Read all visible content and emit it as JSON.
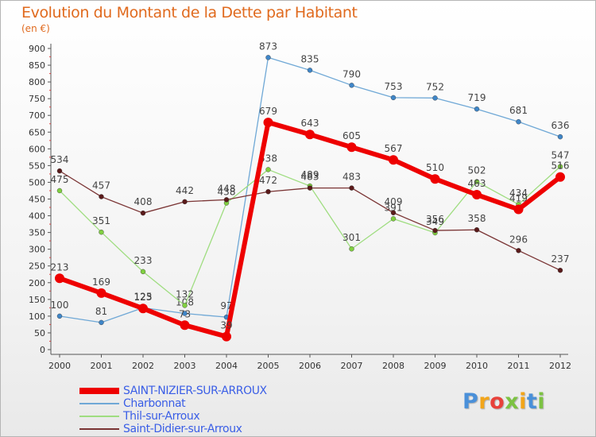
{
  "header": {
    "title": "Evolution du Montant de la Dette par Habitant",
    "unit": "(en €)"
  },
  "logo": {
    "letters": [
      "P",
      "r",
      "o",
      "x",
      "i",
      "t",
      "i"
    ],
    "colors": [
      "#4a90d9",
      "#f2a51a",
      "#e8413a",
      "#7cc242",
      "#f2a51a",
      "#4a90d9",
      "#7cc242"
    ]
  },
  "chart_data": {
    "type": "line",
    "title": "Evolution du Montant de la Dette par Habitant",
    "ylabel": "(en €)",
    "xlabel": "",
    "x": [
      "2000",
      "2001",
      "2002",
      "2003",
      "2004",
      "2005",
      "2006",
      "2007",
      "2008",
      "2009",
      "2010",
      "2011",
      "2012"
    ],
    "ylim": [
      0,
      900
    ],
    "yticks": [
      0,
      50,
      100,
      150,
      200,
      250,
      300,
      350,
      400,
      450,
      500,
      550,
      600,
      650,
      700,
      750,
      800,
      850,
      900
    ],
    "grid": false,
    "legend": "bottom-left",
    "series": [
      {
        "name": "Charbonnat",
        "color": "#6fa8d6",
        "marker": "#3f86c8",
        "width": 1.3,
        "values": [
          100,
          81,
          125,
          108,
          97,
          873,
          835,
          790,
          753,
          752,
          719,
          681,
          636
        ]
      },
      {
        "name": "Thil-sur-Arroux",
        "color": "#9fdd80",
        "marker": "#80d040",
        "width": 1.3,
        "values": [
          475,
          351,
          233,
          132,
          438,
          538,
          489,
          301,
          391,
          349,
          502,
          434,
          547
        ]
      },
      {
        "name": "Saint-Didier-sur-Arroux",
        "color": "#7a3434",
        "marker": "#5a1a1a",
        "width": 1.3,
        "values": [
          534,
          457,
          408,
          442,
          448,
          472,
          483,
          483,
          409,
          356,
          358,
          296,
          237
        ]
      },
      {
        "name": "SAINT-NIZIER-SUR-ARROUX",
        "color": "#ee0000",
        "marker": "#ee0000",
        "width": 6,
        "values": [
          213,
          169,
          123,
          73,
          39,
          679,
          643,
          605,
          567,
          510,
          463,
          419,
          516
        ]
      }
    ]
  },
  "legend_order": [
    3,
    0,
    1,
    2
  ]
}
